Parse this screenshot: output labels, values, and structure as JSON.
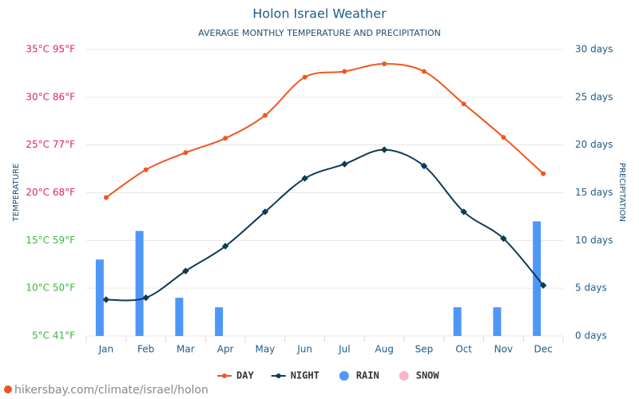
{
  "chart_data": {
    "type": "line",
    "title": "Holon Israel Weather",
    "subtitle": "AVERAGE MONTHLY TEMPERATURE AND PRECIPITATION",
    "y_label": "TEMPERATURE",
    "y2_label": "PRECIPITATION",
    "footer": "hikersbay.com/climate/israel/holon",
    "categories": [
      "Jan",
      "Feb",
      "Mar",
      "Apr",
      "May",
      "Jun",
      "Jul",
      "Aug",
      "Sep",
      "Oct",
      "Nov",
      "Dec"
    ],
    "ylim": [
      5,
      35
    ],
    "yticks": [
      {
        "value": 5,
        "label": "5°C 41°F",
        "color": "#3fb43f"
      },
      {
        "value": 10,
        "label": "10°C 50°F",
        "color": "#3fb43f"
      },
      {
        "value": 15,
        "label": "15°C 59°F",
        "color": "#3fb43f"
      },
      {
        "value": 20,
        "label": "20°C 68°F",
        "color": "#e0245e"
      },
      {
        "value": 25,
        "label": "25°C 77°F",
        "color": "#e0245e"
      },
      {
        "value": 30,
        "label": "30°C 86°F",
        "color": "#e0245e"
      },
      {
        "value": 35,
        "label": "35°C 95°F",
        "color": "#e0245e"
      }
    ],
    "y2lim": [
      0,
      30
    ],
    "y2ticks": [
      {
        "value": 0,
        "label": "0 days"
      },
      {
        "value": 5,
        "label": "5 days"
      },
      {
        "value": 10,
        "label": "10 days"
      },
      {
        "value": 15,
        "label": "15 days"
      },
      {
        "value": 20,
        "label": "20 days"
      },
      {
        "value": 25,
        "label": "25 days"
      },
      {
        "value": 30,
        "label": "30 days"
      }
    ],
    "grid": true,
    "series": [
      {
        "name": "DAY",
        "color": "#f0571e",
        "kind": "line",
        "values": [
          19.5,
          22.4,
          24.2,
          25.7,
          28.1,
          32.1,
          32.7,
          33.5,
          32.7,
          29.3,
          25.8,
          22.0
        ]
      },
      {
        "name": "NIGHT",
        "color": "#0d3b56",
        "kind": "line",
        "values": [
          8.8,
          9.0,
          11.8,
          14.4,
          18.0,
          21.5,
          23.0,
          24.5,
          22.8,
          18.0,
          15.2,
          10.3
        ]
      },
      {
        "name": "RAIN",
        "color": "#4f97f7",
        "kind": "bar",
        "axis": "y2",
        "values": [
          8,
          11,
          4,
          3,
          0,
          0,
          0,
          0,
          0,
          3,
          3,
          12
        ]
      },
      {
        "name": "SNOW",
        "color": "#f8b7c8",
        "kind": "bar",
        "axis": "y2",
        "values": [
          0,
          0,
          0,
          0,
          0,
          0,
          0,
          0,
          0,
          0,
          0,
          0
        ]
      }
    ]
  }
}
